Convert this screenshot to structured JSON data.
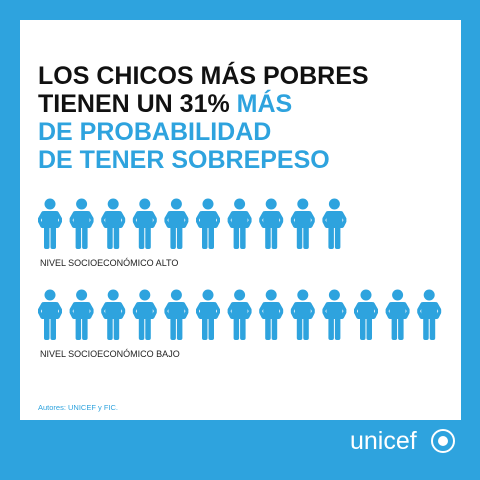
{
  "header": {
    "title_lines": [
      "LOS CHICOS MÁS POBRES",
      "TIENEN UN 31%",
      "MÁS",
      "DE PROBABILIDAD",
      "DE TENER SOBREPESO"
    ]
  },
  "rows": [
    {
      "label": "NIVEL SOCIOECONÓMICO ALTO",
      "icons": 10
    },
    {
      "label": "NIVEL SOCIOECONÓMICO BAJO",
      "icons": 13
    }
  ],
  "footer": {
    "source": "Autores: UNICEF y FIC.",
    "logo": "unicef"
  }
}
